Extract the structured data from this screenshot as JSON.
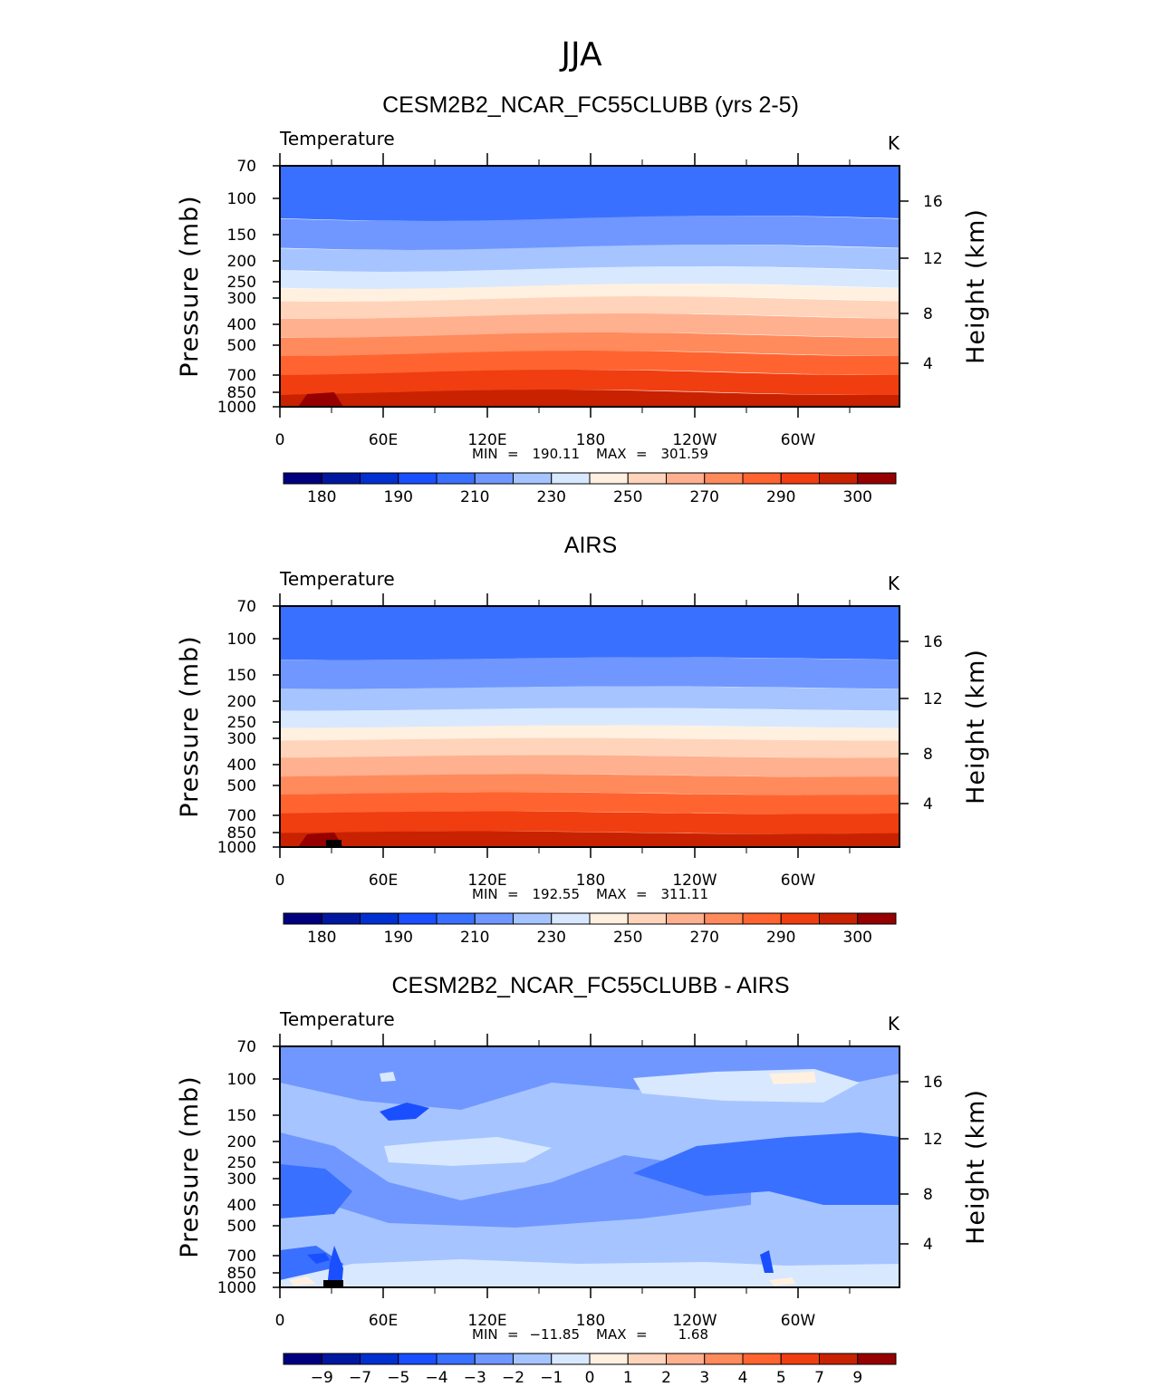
{
  "figure": {
    "title": "JJA"
  },
  "palette": [
    "#00007f",
    "#0018a0",
    "#0030d0",
    "#1a4fff",
    "#3a70ff",
    "#6f97ff",
    "#a6c4ff",
    "#d8e8ff",
    "#fff0e0",
    "#ffd4bb",
    "#ffb08f",
    "#ff8a5c",
    "#ff6430",
    "#f03e10",
    "#c92200",
    "#960000"
  ],
  "chart_data": [
    {
      "type": "heatmap",
      "title": "CESM2B2_NCAR_FC55CLUBB (yrs 2-5)",
      "variable": "Temperature",
      "units": "K",
      "ylabel": "Pressure (mb)",
      "ylabel2": "Height (km)",
      "x_ticks": [
        "0",
        "60E",
        "120E",
        "180",
        "120W",
        "60W"
      ],
      "y_ticks": [
        "70",
        "100",
        "150",
        "200",
        "250",
        "300",
        "400",
        "500",
        "700",
        "850",
        "1000"
      ],
      "y2_ticks": [
        "16",
        "12",
        "8",
        "4"
      ],
      "min_label": "MIN",
      "min_value": "190.11",
      "max_label": "MAX",
      "max_value": "301.59",
      "colorbar_labels": [
        "180",
        "190",
        "210",
        "230",
        "250",
        "270",
        "290",
        "300"
      ]
    },
    {
      "type": "heatmap",
      "title": "AIRS",
      "variable": "Temperature",
      "units": "K",
      "ylabel": "Pressure (mb)",
      "ylabel2": "Height (km)",
      "x_ticks": [
        "0",
        "60E",
        "120E",
        "180",
        "120W",
        "60W"
      ],
      "y_ticks": [
        "70",
        "100",
        "150",
        "200",
        "250",
        "300",
        "400",
        "500",
        "700",
        "850",
        "1000"
      ],
      "y2_ticks": [
        "16",
        "12",
        "8",
        "4"
      ],
      "min_label": "MIN",
      "min_value": "192.55",
      "max_label": "MAX",
      "max_value": "311.11",
      "colorbar_labels": [
        "180",
        "190",
        "210",
        "230",
        "250",
        "270",
        "290",
        "300"
      ]
    },
    {
      "type": "heatmap",
      "title": "CESM2B2_NCAR_FC55CLUBB - AIRS",
      "variable": "Temperature",
      "units": "K",
      "ylabel": "Pressure (mb)",
      "ylabel2": "Height (km)",
      "x_ticks": [
        "0",
        "60E",
        "120E",
        "180",
        "120W",
        "60W"
      ],
      "y_ticks": [
        "70",
        "100",
        "150",
        "200",
        "250",
        "300",
        "400",
        "500",
        "700",
        "850",
        "1000"
      ],
      "y2_ticks": [
        "16",
        "12",
        "8",
        "4"
      ],
      "min_label": "MIN",
      "min_value": "−11.85",
      "max_label": "MAX",
      "max_value": "1.68",
      "colorbar_labels": [
        "−9",
        "−7",
        "−5",
        "−4",
        "−3",
        "−2",
        "−1",
        "0",
        "1",
        "2",
        "3",
        "4",
        "5",
        "7",
        "9"
      ]
    }
  ]
}
